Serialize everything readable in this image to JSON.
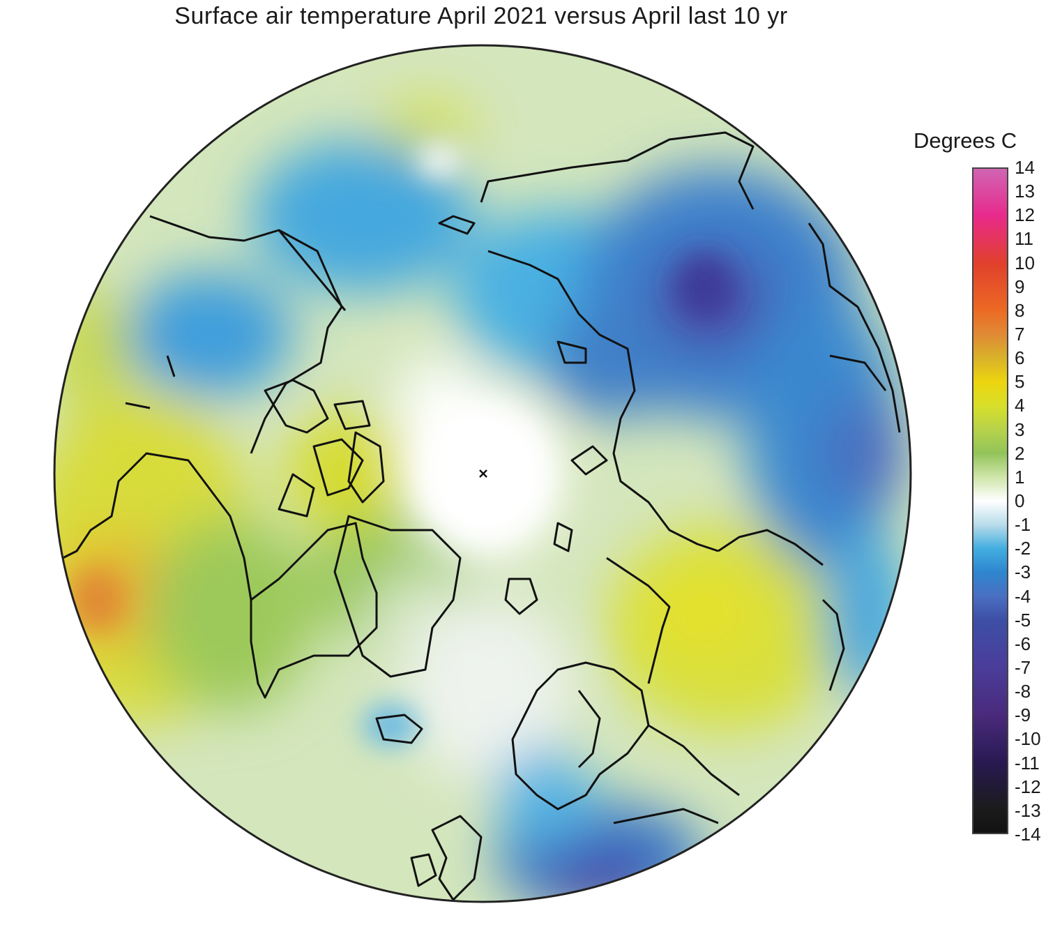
{
  "title": "Surface air temperature April 2021 versus April last 10 yr",
  "legend": {
    "title": "Degrees C",
    "ticks": [
      "14",
      "13",
      "12",
      "11",
      "10",
      "9",
      "8",
      "7",
      "6",
      "5",
      "4",
      "3",
      "2",
      "1",
      "0",
      "-1",
      "-2",
      "-3",
      "-4",
      "-5",
      "-6",
      "-7",
      "-8",
      "-9",
      "-10",
      "-11",
      "-12",
      "-13",
      "-14"
    ],
    "range": [
      -14,
      14
    ],
    "colors": [
      {
        "value": 14,
        "color": "#d066b4"
      },
      {
        "value": 12,
        "color": "#e82a8c"
      },
      {
        "value": 10,
        "color": "#e0402c"
      },
      {
        "value": 8,
        "color": "#ec6a24"
      },
      {
        "value": 7,
        "color": "#e08a35"
      },
      {
        "value": 6,
        "color": "#d9b22a"
      },
      {
        "value": 5,
        "color": "#ecd50f"
      },
      {
        "value": 4,
        "color": "#d8df2a"
      },
      {
        "value": 3,
        "color": "#b7d24a"
      },
      {
        "value": 2,
        "color": "#92c45a"
      },
      {
        "value": 1,
        "color": "#cfe5a9"
      },
      {
        "value": 0,
        "color": "#ffffff"
      },
      {
        "value": -1,
        "color": "#b9dcea"
      },
      {
        "value": -2,
        "color": "#44aee0"
      },
      {
        "value": -3,
        "color": "#2e86cf"
      },
      {
        "value": -4,
        "color": "#4a6fc2"
      },
      {
        "value": -5,
        "color": "#3d4fa6"
      },
      {
        "value": -7,
        "color": "#4a3d9a"
      },
      {
        "value": -9,
        "color": "#4a2a7c"
      },
      {
        "value": -11,
        "color": "#281a52"
      },
      {
        "value": -13,
        "color": "#1b1b1b"
      },
      {
        "value": -14,
        "color": "#111111"
      }
    ]
  },
  "map": {
    "projection": "north polar stereographic",
    "pole_marker": "x",
    "border_color": "#222222",
    "coastline_color": "#111111"
  }
}
